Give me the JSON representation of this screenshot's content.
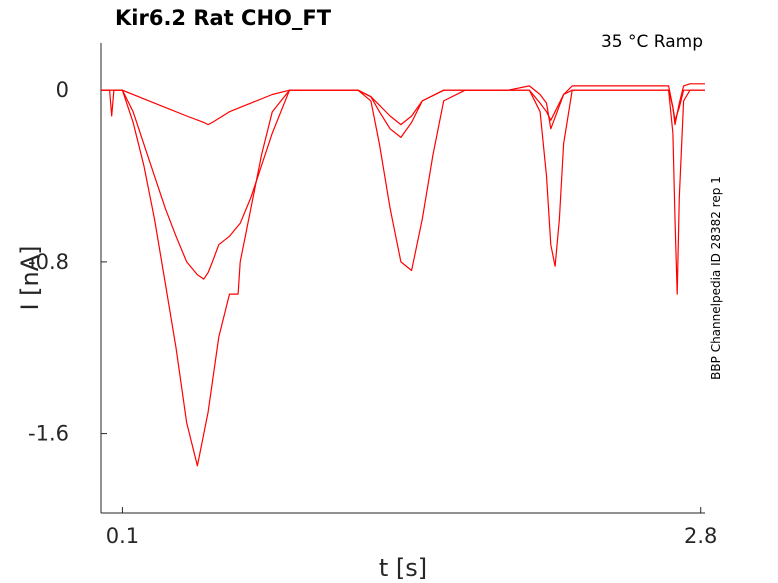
{
  "chart_data": {
    "type": "line",
    "title": "Kir6.2  Rat  CHO_FT",
    "condition": "35 °C  Ramp",
    "side_label": "BBP Channelpedia ID 28382 rep 1",
    "xlabel": "t [s]",
    "ylabel": "I [nA]",
    "xlim": [
      0.0,
      2.82
    ],
    "ylim": [
      -1.97,
      0.22
    ],
    "x_ticks": [
      {
        "value": 0.1,
        "label": "0.1"
      },
      {
        "value": 2.8,
        "label": "2.8"
      }
    ],
    "y_ticks": [
      {
        "value": 0,
        "label": "0"
      },
      {
        "value": -0.8,
        "label": "-0.8"
      },
      {
        "value": -1.6,
        "label": "-1.6"
      }
    ],
    "grid": false,
    "color": "#ff0000",
    "series": [
      {
        "x": [
          0.0,
          0.04,
          0.05,
          0.06,
          0.1,
          0.2,
          0.3,
          0.4,
          0.48,
          0.5,
          0.52,
          0.6,
          0.7,
          0.8,
          0.88,
          0.95,
          1.1,
          1.2,
          1.26,
          1.3,
          1.35,
          1.4,
          1.45,
          1.5,
          1.6,
          1.7,
          1.8,
          1.9,
          2.0,
          2.05,
          2.08,
          2.1,
          2.13,
          2.16,
          2.2,
          2.3,
          2.4,
          2.5,
          2.6,
          2.65,
          2.67,
          2.68,
          2.7,
          2.72,
          2.75,
          2.82
        ],
        "y": [
          0.0,
          0.0,
          -0.12,
          0.0,
          0.0,
          -0.04,
          -0.08,
          -0.12,
          -0.15,
          -0.16,
          -0.15,
          -0.1,
          -0.06,
          -0.02,
          0.0,
          0.0,
          0.0,
          0.0,
          -0.03,
          -0.07,
          -0.12,
          -0.16,
          -0.12,
          -0.05,
          0.0,
          0.0,
          0.0,
          0.0,
          0.0,
          -0.06,
          -0.1,
          -0.14,
          -0.08,
          -0.02,
          0.0,
          0.0,
          0.0,
          0.0,
          0.0,
          0.0,
          -0.08,
          -0.14,
          -0.08,
          0.0,
          0.0,
          0.0
        ]
      },
      {
        "x": [
          0.0,
          0.1,
          0.15,
          0.2,
          0.25,
          0.3,
          0.35,
          0.4,
          0.45,
          0.48,
          0.5,
          0.52,
          0.55,
          0.6,
          0.65,
          0.7,
          0.75,
          0.8,
          0.88,
          0.95,
          1.1,
          1.2,
          1.26,
          1.3,
          1.35,
          1.4,
          1.45,
          1.5,
          1.6,
          1.7,
          1.8,
          1.9,
          2.0,
          2.05,
          2.08,
          2.1,
          2.13,
          2.16,
          2.2,
          2.3,
          2.4,
          2.5,
          2.6,
          2.65,
          2.67,
          2.68,
          2.7,
          2.72,
          2.75,
          2.82
        ],
        "y": [
          0.0,
          0.0,
          -0.1,
          -0.25,
          -0.4,
          -0.55,
          -0.68,
          -0.8,
          -0.86,
          -0.88,
          -0.85,
          -0.8,
          -0.72,
          -0.68,
          -0.62,
          -0.5,
          -0.35,
          -0.2,
          0.0,
          0.0,
          0.0,
          0.0,
          -0.03,
          -0.1,
          -0.18,
          -0.22,
          -0.15,
          -0.05,
          0.0,
          0.0,
          0.0,
          0.0,
          0.02,
          -0.02,
          -0.06,
          -0.18,
          -0.1,
          -0.02,
          0.02,
          0.02,
          0.02,
          0.02,
          0.02,
          0.02,
          -0.08,
          -0.16,
          -0.06,
          0.02,
          0.03,
          0.03
        ]
      },
      {
        "x": [
          0.0,
          0.1,
          0.15,
          0.2,
          0.25,
          0.3,
          0.35,
          0.4,
          0.45,
          0.5,
          0.55,
          0.6,
          0.64,
          0.65,
          0.7,
          0.75,
          0.8,
          0.88,
          0.95,
          1.1,
          1.2,
          1.26,
          1.3,
          1.35,
          1.4,
          1.45,
          1.5,
          1.55,
          1.6,
          1.7,
          1.8,
          1.9,
          2.0,
          2.05,
          2.08,
          2.1,
          2.12,
          2.14,
          2.16,
          2.2,
          2.3,
          2.4,
          2.5,
          2.6,
          2.65,
          2.67,
          2.68,
          2.69,
          2.7,
          2.72,
          2.75,
          2.82
        ],
        "y": [
          0.0,
          0.0,
          -0.15,
          -0.35,
          -0.6,
          -0.9,
          -1.2,
          -1.55,
          -1.75,
          -1.5,
          -1.15,
          -0.95,
          -0.95,
          -0.8,
          -0.55,
          -0.3,
          -0.1,
          0.0,
          0.0,
          0.0,
          0.0,
          -0.05,
          -0.25,
          -0.55,
          -0.8,
          -0.84,
          -0.6,
          -0.3,
          -0.05,
          0.0,
          0.0,
          0.0,
          0.0,
          -0.1,
          -0.4,
          -0.72,
          -0.82,
          -0.6,
          -0.25,
          0.0,
          0.0,
          0.0,
          0.0,
          0.0,
          0.0,
          -0.2,
          -0.6,
          -0.95,
          -0.5,
          -0.05,
          0.0,
          0.0
        ]
      }
    ]
  }
}
